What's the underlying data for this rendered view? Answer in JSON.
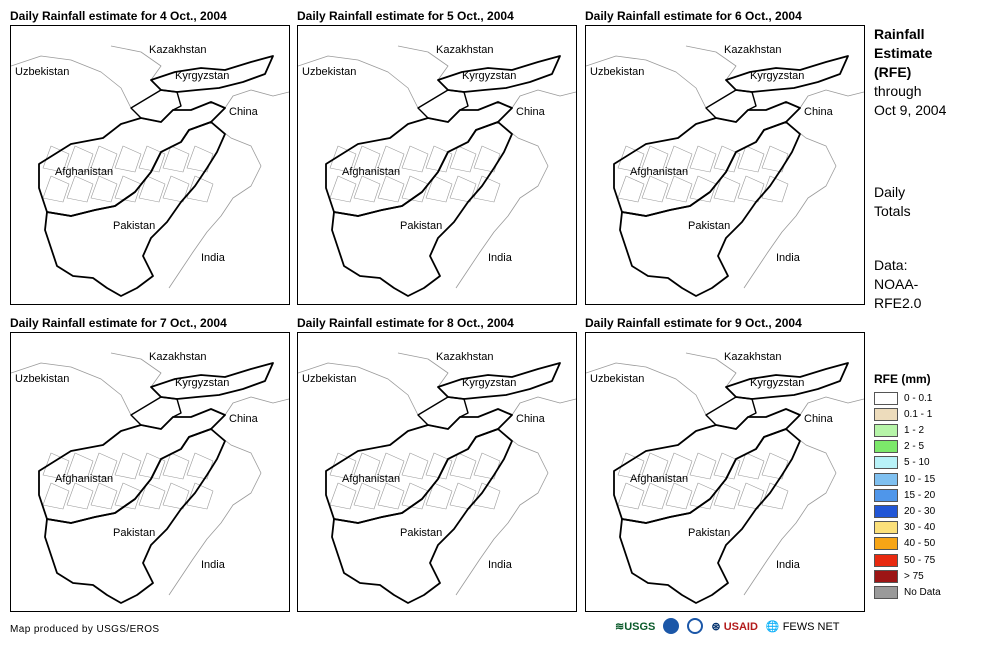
{
  "panels": [
    {
      "title": "Daily Rainfall estimate for 4 Oct., 2004"
    },
    {
      "title": "Daily Rainfall estimate for 5 Oct., 2004"
    },
    {
      "title": "Daily Rainfall estimate for 6 Oct., 2004"
    },
    {
      "title": "Daily Rainfall estimate for 7 Oct., 2004"
    },
    {
      "title": "Daily Rainfall estimate for 8 Oct., 2004"
    },
    {
      "title": "Daily Rainfall estimate for 9 Oct., 2004"
    }
  ],
  "countries": {
    "kazakhstan": "Kazakhstan",
    "uzbekistan": "Uzbekistan",
    "kyrgyzstan": "Kyrgyzstan",
    "china": "China",
    "afghanistan": "Afghanistan",
    "pakistan": "Pakistan",
    "india": "India"
  },
  "side": {
    "title_line1": "Rainfall",
    "title_line2": "Estimate",
    "title_line3": "(RFE)",
    "through": "through",
    "date": "Oct 9, 2004",
    "daily1": "Daily",
    "daily2": "Totals",
    "data1": "Data:",
    "data2": "NOAA-",
    "data3": "RFE2.0"
  },
  "legend": {
    "title": "RFE (mm)",
    "items": [
      {
        "label": "0 - 0.1",
        "color": "#ffffff"
      },
      {
        "label": "0.1 - 1",
        "color": "#eddcbc"
      },
      {
        "label": "1 - 2",
        "color": "#b6f4a8"
      },
      {
        "label": "2 - 5",
        "color": "#7ce86a"
      },
      {
        "label": "5 - 10",
        "color": "#b8f2f8"
      },
      {
        "label": "10 - 15",
        "color": "#7fc0f0"
      },
      {
        "label": "15 - 20",
        "color": "#4f96ea"
      },
      {
        "label": "20 - 30",
        "color": "#2156d6"
      },
      {
        "label": "30 - 40",
        "color": "#fbe07a"
      },
      {
        "label": "40 - 50",
        "color": "#f7a516"
      },
      {
        "label": "50 - 75",
        "color": "#e8290f"
      },
      {
        "label": "> 75",
        "color": "#9c1515"
      },
      {
        "label": "No Data",
        "color": "#9a9a9a"
      }
    ]
  },
  "credit": "Map produced by USGS/EROS",
  "logos": {
    "usgs": "USGS",
    "usaid": "USAID",
    "fews": "FEWS NET"
  }
}
